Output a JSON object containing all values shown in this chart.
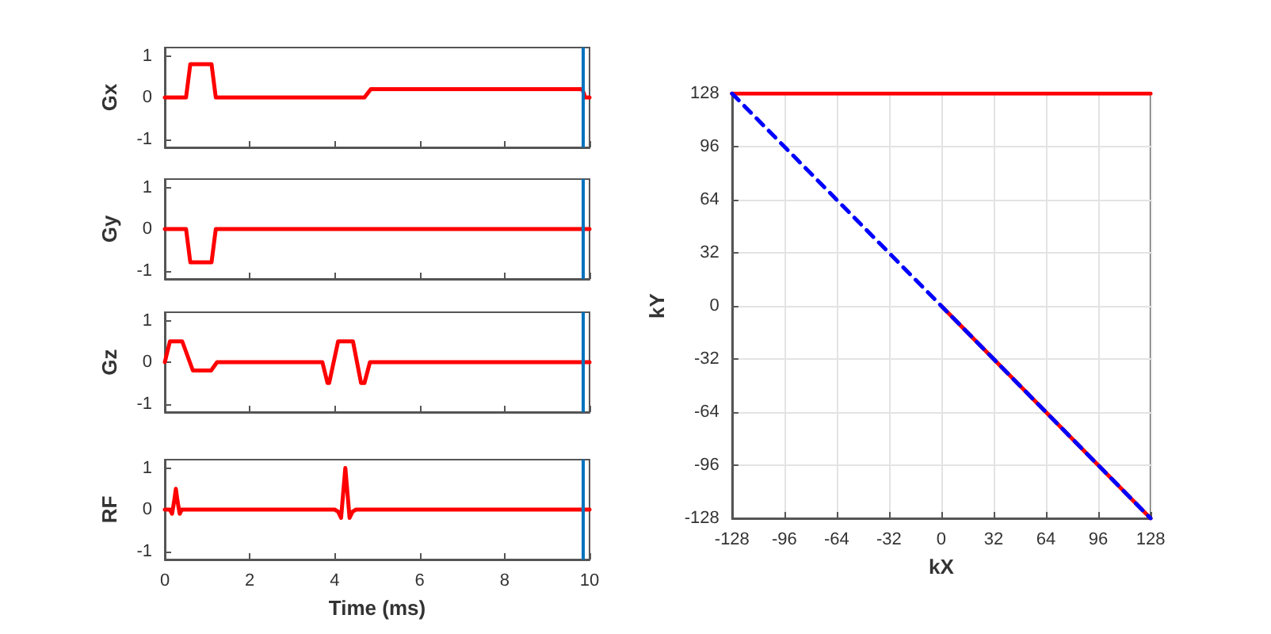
{
  "chart_data": [
    {
      "type": "line",
      "ylabel": "Gx",
      "xlim": [
        0,
        10
      ],
      "xticks": [
        0,
        2,
        4,
        6,
        8,
        10
      ],
      "ylim": [
        -1.2,
        1.2
      ],
      "yticks": [
        -1,
        0,
        1
      ],
      "tick_labels": "y",
      "grid": false,
      "series": [
        {
          "color": "#ff0000",
          "x": [
            0,
            0.5,
            0.6,
            1.1,
            1.2,
            4.7,
            4.85,
            9.83,
            9.9,
            10
          ],
          "values": [
            0,
            0,
            0.8,
            0.8,
            0,
            0,
            0.2,
            0.2,
            0,
            0
          ]
        }
      ],
      "ref_lines": [
        {
          "axis": "x",
          "value": 9.86,
          "color": "#0072bd"
        }
      ]
    },
    {
      "type": "line",
      "ylabel": "Gy",
      "xlim": [
        0,
        10
      ],
      "xticks": [
        0,
        2,
        4,
        6,
        8,
        10
      ],
      "ylim": [
        -1.2,
        1.2
      ],
      "yticks": [
        -1,
        0,
        1
      ],
      "tick_labels": "y",
      "grid": false,
      "series": [
        {
          "color": "#ff0000",
          "x": [
            0,
            0.5,
            0.6,
            1.1,
            1.2,
            10
          ],
          "values": [
            0,
            0,
            -0.8,
            -0.8,
            0,
            0
          ]
        }
      ],
      "ref_lines": [
        {
          "axis": "x",
          "value": 9.86,
          "color": "#0072bd"
        }
      ]
    },
    {
      "type": "line",
      "ylabel": "Gz",
      "xlim": [
        0,
        10
      ],
      "xticks": [
        0,
        2,
        4,
        6,
        8,
        10
      ],
      "ylim": [
        -1.2,
        1.2
      ],
      "yticks": [
        -1,
        0,
        1
      ],
      "tick_labels": "y",
      "grid": false,
      "series": [
        {
          "color": "#ff0000",
          "x": [
            0,
            0.12,
            0.41,
            0.66,
            1.09,
            1.23,
            3.71,
            3.83,
            3.87,
            4.08,
            4.43,
            4.62,
            4.7,
            4.83,
            10
          ],
          "values": [
            0,
            0.5,
            0.5,
            -0.2,
            -0.2,
            0,
            0,
            -0.5,
            -0.5,
            0.5,
            0.5,
            -0.5,
            -0.5,
            0,
            0
          ]
        }
      ],
      "ref_lines": [
        {
          "axis": "x",
          "value": 9.86,
          "color": "#0072bd"
        }
      ]
    },
    {
      "type": "line",
      "ylabel": "RF",
      "xlabel": "Time (ms)",
      "xlim": [
        0,
        10
      ],
      "xticks": [
        0,
        2,
        4,
        6,
        8,
        10
      ],
      "ylim": [
        -1.2,
        1.2
      ],
      "yticks": [
        -1,
        0,
        1
      ],
      "grid": false,
      "series": [
        {
          "color": "#ff0000",
          "x": [
            0,
            0.12,
            0.17,
            0.22,
            0.26,
            0.3,
            0.35,
            0.4,
            4.0,
            4.08,
            4.15,
            4.25,
            4.35,
            4.42,
            4.5,
            10
          ],
          "values": [
            0,
            0,
            -0.1,
            0.2,
            0.5,
            0.2,
            -0.1,
            0,
            0,
            -0.05,
            -0.2,
            1,
            -0.2,
            -0.05,
            0,
            0
          ]
        }
      ],
      "ref_lines": [
        {
          "axis": "x",
          "value": 9.86,
          "color": "#0072bd"
        }
      ]
    },
    {
      "type": "line",
      "xlabel": "kX",
      "ylabel": "kY",
      "xlim": [
        -128,
        128
      ],
      "xticks": [
        -128,
        -96,
        -64,
        -32,
        0,
        32,
        64,
        96,
        128
      ],
      "ylim": [
        -128,
        128
      ],
      "yticks": [
        -128,
        -96,
        -64,
        -32,
        0,
        32,
        64,
        96,
        128
      ],
      "grid": true,
      "series": [
        {
          "color": "#ff0000",
          "x": [
            -128,
            128
          ],
          "values": [
            128,
            128
          ]
        },
        {
          "color": "#ff0000",
          "x": [
            0,
            128
          ],
          "values": [
            0,
            -128
          ]
        },
        {
          "color": "#0000ff",
          "line_style": "dashed",
          "x": [
            -128,
            128
          ],
          "values": [
            128,
            -128
          ]
        }
      ]
    }
  ]
}
